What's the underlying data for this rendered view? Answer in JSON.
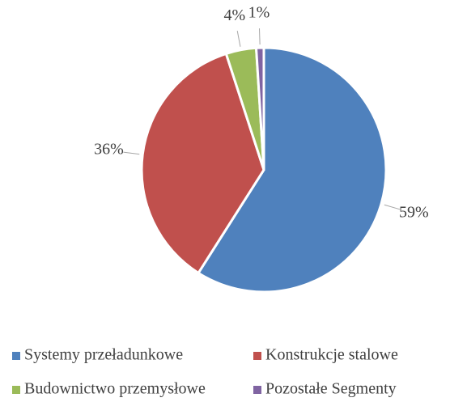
{
  "chart_data": {
    "type": "pie",
    "categories": [
      "Systemy przeładunkowe",
      "Konstrukcje stalowe",
      "Budownictwo przemysłowe",
      "Pozostałe Segmenty"
    ],
    "values": [
      59,
      36,
      4,
      1
    ],
    "value_labels": [
      "59%",
      "36%",
      "4%",
      "1%"
    ],
    "colors": [
      "#4f81bd",
      "#c0504d",
      "#9bbb59",
      "#8064a2"
    ],
    "legend": "bottom"
  }
}
